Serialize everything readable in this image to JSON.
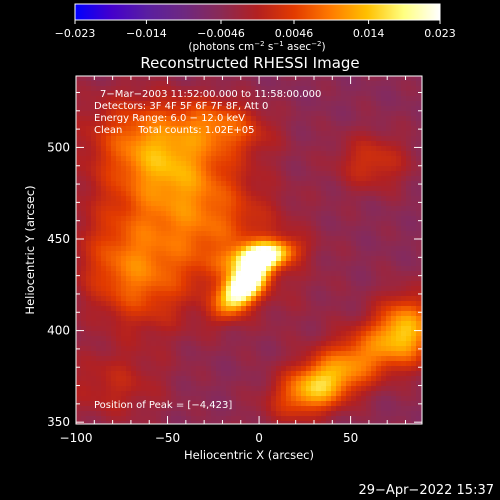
{
  "chart_data": {
    "type": "heatmap",
    "title": "Reconstructed RHESSI Image",
    "xlabel": "Heliocentric X (arcsec)",
    "ylabel": "Heliocentric Y (arcsec)",
    "xlim": [
      -100,
      89
    ],
    "ylim": [
      349,
      539
    ],
    "xticks": [
      -100,
      -50,
      0,
      50
    ],
    "xtick_labels": [
      "−100",
      "−50",
      "0",
      "50"
    ],
    "yticks": [
      350,
      400,
      450,
      500
    ],
    "ytick_labels": [
      "350",
      "400",
      "450",
      "500"
    ],
    "colorbar": {
      "range": [
        -0.023,
        0.023
      ],
      "ticks": [
        -0.023,
        -0.014,
        -0.0046,
        0.0046,
        0.014,
        0.023
      ],
      "tick_labels": [
        "−0.023",
        "−0.014",
        "−0.0046",
        "0.0046",
        "0.014",
        "0.023"
      ],
      "unit_parts": [
        "(photons cm",
        "−2",
        " s",
        "−1",
        " asec",
        "−2",
        ")"
      ],
      "colormap": [
        "#0000ff",
        "#4400cc",
        "#5a1fa0",
        "#6e2880",
        "#8a2a55",
        "#b32020",
        "#e23a00",
        "#ff7a00",
        "#ffc000",
        "#ffff80",
        "#ffffff"
      ]
    },
    "annotations": [
      "7−Mar−2003 11:52:00.000 to 11:58:00.000",
      "Detectors: 3F 4F 5F 6F 7F 8F, Att 0",
      "Energy Range: 6.0 − 12.0 keV",
      "Clean     Total counts: 1.02E+05"
    ],
    "peak_label": "Position of Peak = [−4,423]",
    "peak": {
      "x": -4,
      "y": 423,
      "value": 0.023
    },
    "background_value": -0.0046,
    "sources": [
      {
        "x": -8,
        "y": 425,
        "sx": 6,
        "sy": 12,
        "angle": -40,
        "value": 0.027
      },
      {
        "x": 2,
        "y": 441,
        "sx": 12,
        "sy": 5,
        "angle": 10,
        "value": 0.017
      },
      {
        "x": -38,
        "y": 463,
        "sx": 38,
        "sy": 24,
        "angle": -35,
        "value": 0.0082
      },
      {
        "x": -55,
        "y": 500,
        "sx": 24,
        "sy": 16,
        "angle": -25,
        "value": 0.007
      },
      {
        "x": -20,
        "y": 512,
        "sx": 18,
        "sy": 10,
        "angle": -10,
        "value": 0.006
      },
      {
        "x": -70,
        "y": 430,
        "sx": 22,
        "sy": 18,
        "angle": -50,
        "value": 0.0072
      },
      {
        "x": 55,
        "y": 385,
        "sx": 30,
        "sy": 11,
        "angle": 30,
        "value": 0.0088
      },
      {
        "x": 30,
        "y": 368,
        "sx": 14,
        "sy": 9,
        "angle": 20,
        "value": 0.0072
      },
      {
        "x": 80,
        "y": 400,
        "sx": 10,
        "sy": 14,
        "angle": 10,
        "value": 0.0065
      },
      {
        "x": 62,
        "y": 492,
        "sx": 14,
        "sy": 11,
        "angle": 0,
        "value": 0.003
      },
      {
        "x": -80,
        "y": 370,
        "sx": 20,
        "sy": 14,
        "angle": 0,
        "value": 0.001
      }
    ]
  },
  "footer": {
    "timestamp": "29−Apr−2022 15:37"
  }
}
